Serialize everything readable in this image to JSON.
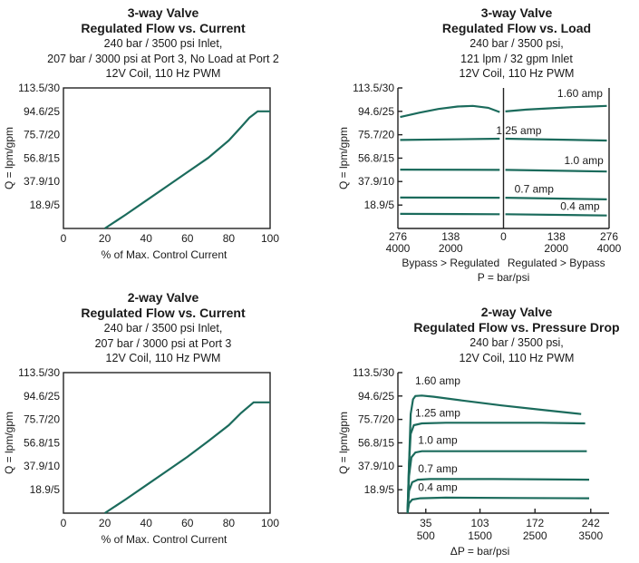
{
  "chart_data": [
    {
      "id": "c1",
      "type": "line",
      "title": "3-way Valve",
      "subtitle": "Regulated Flow vs. Current",
      "notes": [
        "240 bar / 3500 psi Inlet,",
        "207 bar / 3000 psi at Port 3, No Load at Port 2",
        "12V Coil, 110 Hz PWM"
      ],
      "xlabel": "% of Max. Control Current",
      "ylabel": "Q = lpm/gpm",
      "xlim": [
        0,
        100
      ],
      "ylim": [
        0,
        113.5
      ],
      "xticks": [
        "0",
        "20",
        "40",
        "60",
        "80",
        "100"
      ],
      "yticks": [
        "113.5/30",
        "94.6/25",
        "75.7/20",
        "56.8/15",
        "37.9/10",
        "18.9/5"
      ],
      "series": [
        {
          "name": "flow",
          "x": [
            20,
            30,
            40,
            50,
            60,
            70,
            80,
            86,
            90,
            94,
            100
          ],
          "y": [
            0,
            11,
            22.5,
            34,
            45.5,
            57,
            71,
            82,
            89.5,
            94.6,
            94.6
          ]
        }
      ]
    },
    {
      "id": "c2",
      "type": "line",
      "title": "3-way Valve",
      "subtitle": "Regulated Flow vs. Load",
      "notes": [
        "240 bar / 3500 psi,",
        "121 lpm / 32 gpm Inlet",
        "12V Coil, 110 Hz PWM"
      ],
      "xlabel": "P = bar/psi",
      "xlabel_left": "Bypass > Regulated",
      "xlabel_right": "Regulated > Bypass",
      "ylabel": "Q = lpm/gpm",
      "xlim": [
        -276,
        276
      ],
      "ylim": [
        0,
        113.5
      ],
      "xticks_bar": [
        "276",
        "138",
        "0",
        "138",
        "276"
      ],
      "xticks_psi": [
        "4000",
        "2000",
        "",
        "2000",
        "4000"
      ],
      "yticks": [
        "113.5/30",
        "94.6/25",
        "75.7/20",
        "56.8/15",
        "37.9/10",
        "18.9/5"
      ],
      "series": [
        {
          "name": "1.60 amp",
          "left_x": [
            -270,
            -220,
            -170,
            -120,
            -80,
            -40,
            -10
          ],
          "left_y": [
            90,
            93.5,
            96.5,
            98.5,
            99,
            97.5,
            94
          ],
          "right_x": [
            5,
            60,
            120,
            180,
            230,
            270
          ],
          "right_y": [
            94.5,
            96,
            97,
            98,
            98.5,
            99
          ]
        },
        {
          "name": "1.25 amp",
          "left_x": [
            -270,
            -10
          ],
          "left_y": [
            71.5,
            72.5
          ],
          "right_x": [
            5,
            270
          ],
          "right_y": [
            72.5,
            71
          ]
        },
        {
          "name": "1.0 amp",
          "left_x": [
            -270,
            -10
          ],
          "left_y": [
            47.5,
            47.3
          ],
          "right_x": [
            5,
            270
          ],
          "right_y": [
            47.3,
            46
          ]
        },
        {
          "name": "0.7 amp",
          "left_x": [
            -270,
            -10
          ],
          "left_y": [
            25,
            24.8
          ],
          "right_x": [
            5,
            270
          ],
          "right_y": [
            24.8,
            23.5
          ]
        },
        {
          "name": "0.4 amp",
          "left_x": [
            -270,
            -10
          ],
          "left_y": [
            11.8,
            11.5
          ],
          "right_x": [
            5,
            270
          ],
          "right_y": [
            11.5,
            10.5
          ]
        }
      ]
    },
    {
      "id": "c3",
      "type": "line",
      "title": "2-way Valve",
      "subtitle": "Regulated Flow vs. Current",
      "notes": [
        "240 bar / 3500 psi Inlet,",
        "207 bar / 3000 psi at Port 3",
        "12V Coil, 110 Hz PWM"
      ],
      "xlabel": "% of Max. Control Current",
      "ylabel": "Q = lpm/gpm",
      "xlim": [
        0,
        100
      ],
      "ylim": [
        0,
        113.5
      ],
      "xticks": [
        "0",
        "20",
        "40",
        "60",
        "80",
        "100"
      ],
      "yticks": [
        "113.5/30",
        "94.6/25",
        "75.7/20",
        "56.8/15",
        "37.9/10",
        "18.9/5"
      ],
      "series": [
        {
          "name": "flow",
          "x": [
            20,
            30,
            40,
            50,
            60,
            70,
            80,
            86,
            92,
            100
          ],
          "y": [
            0,
            11,
            22.5,
            34,
            45.5,
            58,
            71,
            81,
            89.5,
            89.5
          ]
        }
      ]
    },
    {
      "id": "c4",
      "type": "line",
      "title": "2-way Valve",
      "subtitle": "Regulated Flow vs. Pressure Drop",
      "notes": [
        "240 bar / 3500 psi,",
        "12V Coil, 110 Hz PWM"
      ],
      "xlabel": "ΔP = bar/psi",
      "ylabel": "Q = lpm/gpm",
      "xlim": [
        0,
        265
      ],
      "ylim": [
        0,
        113.5
      ],
      "xtick_values": [
        35,
        103,
        172,
        242
      ],
      "xticks_bar": [
        "35",
        "103",
        "172",
        "242"
      ],
      "xticks_psi": [
        "500",
        "1500",
        "2500",
        "3500"
      ],
      "yticks": [
        "113.5/30",
        "94.6/25",
        "75.7/20",
        "56.8/15",
        "37.9/10",
        "18.9/5"
      ],
      "series": [
        {
          "name": "1.60 amp",
          "x": [
            12,
            14,
            16,
            19,
            22,
            30,
            45,
            80,
            130,
            180,
            230
          ],
          "y": [
            0,
            40,
            80,
            92,
            94.6,
            95,
            94,
            91,
            87,
            83.5,
            80
          ]
        },
        {
          "name": "1.25 amp",
          "x": [
            12,
            14,
            16,
            20,
            30,
            60,
            120,
            180,
            235
          ],
          "y": [
            0,
            40,
            64,
            71,
            72.5,
            73,
            73,
            73,
            72.5
          ]
        },
        {
          "name": "1.0 amp",
          "x": [
            12,
            14,
            17,
            22,
            30,
            80,
            150,
            237
          ],
          "y": [
            0,
            30,
            45,
            49,
            50,
            50,
            50,
            50
          ]
        },
        {
          "name": "0.7 amp",
          "x": [
            12,
            14,
            18,
            25,
            40,
            120,
            240
          ],
          "y": [
            0,
            18,
            25,
            27,
            27.5,
            27.5,
            27
          ]
        },
        {
          "name": "0.4 amp",
          "x": [
            12,
            14,
            18,
            28,
            60,
            150,
            240
          ],
          "y": [
            0,
            8,
            11,
            12,
            12.5,
            12.2,
            12
          ]
        }
      ]
    }
  ]
}
